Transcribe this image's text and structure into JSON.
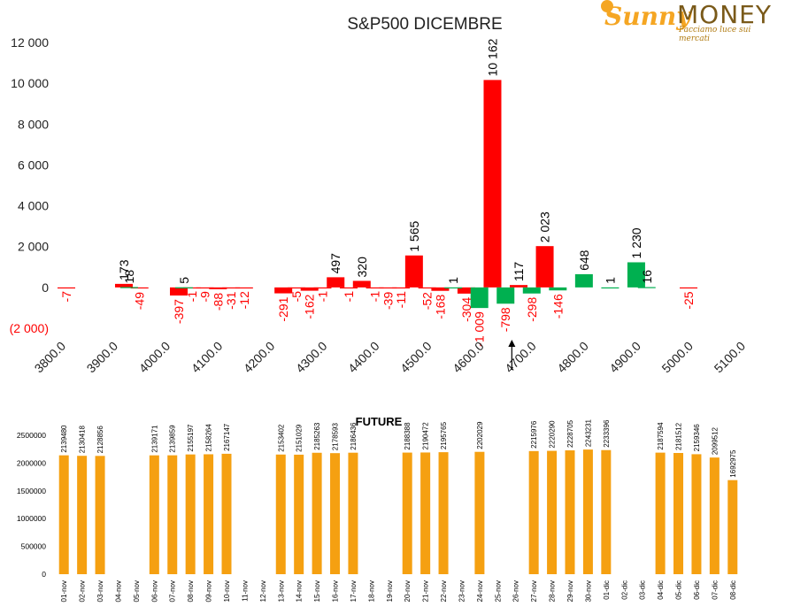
{
  "logo": {
    "brand_1": "Sunny",
    "brand_2": "MONEY",
    "tagline": "Facciamo luce sui mercati"
  },
  "chart_data": [
    {
      "type": "bar",
      "title": "S&P500 DICEMBRE",
      "ylim": [
        -2000,
        12000
      ],
      "y_ticks": [
        -2000,
        0,
        2000,
        4000,
        6000,
        8000,
        10000,
        12000
      ],
      "y_tick_labels": [
        "(2 000)",
        "0",
        "2 000",
        "4 000",
        "6 000",
        "8 000",
        "10 000",
        "12 000"
      ],
      "x_range": [
        3800,
        5100
      ],
      "x_tick_labels": [
        "3800.0",
        "3900.0",
        "4000.0",
        "4100.0",
        "4200.0",
        "4300.0",
        "4400.0",
        "4500.0",
        "4600.0",
        "4700.0",
        "4800.0",
        "4900.0",
        "5000.0",
        "5100.0"
      ],
      "bar_width": 20,
      "colors": {
        "calls": "#ff0000",
        "puts": "#00b050",
        "neg_label": "#ff0000",
        "pos_label": "#000000"
      },
      "series": [
        {
          "name": "",
          "color": "#ff0000",
          "points": [
            {
              "x": 3800,
              "y": -7,
              "label": "-7"
            },
            {
              "x": 3910,
              "y": 173,
              "label": "173"
            },
            {
              "x": 3940,
              "y": -49,
              "label": "-49"
            },
            {
              "x": 4015,
              "y": -397,
              "label": "-397"
            },
            {
              "x": 4040,
              "y": -1,
              "label": "-1"
            },
            {
              "x": 4065,
              "y": -9,
              "label": "-9"
            },
            {
              "x": 4090,
              "y": -88,
              "label": "-88"
            },
            {
              "x": 4115,
              "y": -31,
              "label": "-31"
            },
            {
              "x": 4140,
              "y": -12,
              "label": "-12"
            },
            {
              "x": 4215,
              "y": -291,
              "label": "-291"
            },
            {
              "x": 4240,
              "y": -5,
              "label": "-5"
            },
            {
              "x": 4265,
              "y": -162,
              "label": "-162"
            },
            {
              "x": 4290,
              "y": -1,
              "label": "-1"
            },
            {
              "x": 4315,
              "y": 497,
              "label": "497"
            },
            {
              "x": 4340,
              "y": -1,
              "label": "-1"
            },
            {
              "x": 4365,
              "y": 320,
              "label": "320"
            },
            {
              "x": 4390,
              "y": -1,
              "label": "-1"
            },
            {
              "x": 4415,
              "y": -39,
              "label": "-39"
            },
            {
              "x": 4440,
              "y": -11,
              "label": "-11"
            },
            {
              "x": 4465,
              "y": 1565,
              "label": "1 565"
            },
            {
              "x": 4490,
              "y": -52,
              "label": "-52"
            },
            {
              "x": 4515,
              "y": -168,
              "label": "-168"
            },
            {
              "x": 4565,
              "y": -304,
              "label": "-304"
            },
            {
              "x": 4615,
              "y": 10162,
              "label": "10 162"
            },
            {
              "x": 4665,
              "y": 117,
              "label": "117"
            },
            {
              "x": 4715,
              "y": 2023,
              "label": "2 023"
            },
            {
              "x": 4990,
              "y": -25,
              "label": "-25"
            }
          ]
        },
        {
          "name": "",
          "color": "#00b050",
          "points": [
            {
              "x": 3920,
              "y": 18,
              "label": "18"
            },
            {
              "x": 4025,
              "y": 5,
              "label": "5"
            },
            {
              "x": 4540,
              "y": 1,
              "label": "1"
            },
            {
              "x": 4590,
              "y": -1009,
              "label": "-1 009"
            },
            {
              "x": 4640,
              "y": -798,
              "label": "-798"
            },
            {
              "x": 4690,
              "y": -298,
              "label": "-298"
            },
            {
              "x": 4740,
              "y": -146,
              "label": "-146"
            },
            {
              "x": 4790,
              "y": 648,
              "label": "648"
            },
            {
              "x": 4840,
              "y": 1,
              "label": "1"
            },
            {
              "x": 4890,
              "y": 1230,
              "label": "1 230"
            },
            {
              "x": 4910,
              "y": 16,
              "label": "16"
            }
          ]
        }
      ],
      "annotations": [
        {
          "type": "arrow-up",
          "x": 4652
        }
      ]
    },
    {
      "type": "bar",
      "title": "FUTURE",
      "ylim": [
        0,
        2500000
      ],
      "y_ticks": [
        0,
        500000,
        1000000,
        1500000,
        2000000,
        2500000
      ],
      "y_tick_labels": [
        "0",
        "500000",
        "1000000",
        "1500000",
        "2000000",
        "2500000"
      ],
      "color": "#f5a011",
      "categories": [
        "01-nov",
        "02-nov",
        "03-nov",
        "04-nov",
        "05-nov",
        "06-nov",
        "07-nov",
        "08-nov",
        "09-nov",
        "10-nov",
        "11-nov",
        "12-nov",
        "13-nov",
        "14-nov",
        "15-nov",
        "16-nov",
        "17-nov",
        "18-nov",
        "19-nov",
        "20-nov",
        "21-nov",
        "22-nov",
        "23-nov",
        "24-nov",
        "25-nov",
        "26-nov",
        "27-nov",
        "28-nov",
        "29-nov",
        "30-nov",
        "01-dic",
        "02-dic",
        "03-dic",
        "04-dic",
        "05-dic",
        "06-dic",
        "07-dic",
        "08-dic"
      ],
      "values": [
        2139480,
        2130418,
        2128856,
        null,
        null,
        2139171,
        2139859,
        2155197,
        2158264,
        2167147,
        null,
        null,
        2153402,
        2151029,
        2185263,
        2178593,
        2186436,
        null,
        null,
        2188388,
        2190472,
        2195765,
        null,
        2202029,
        null,
        null,
        2215976,
        2220290,
        2228705,
        2243231,
        2233396,
        null,
        null,
        2187594,
        2181512,
        2159346,
        2099512,
        1692975
      ]
    }
  ]
}
